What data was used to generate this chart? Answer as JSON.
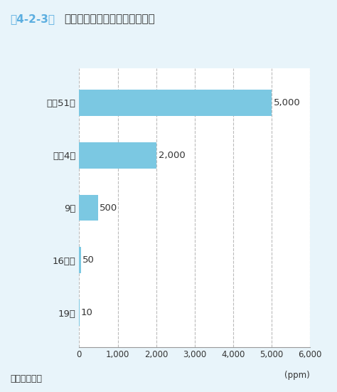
{
  "title_prefix": "図4-2-3",
  "title_text": "軽油中の硫黄分規制強化の推移",
  "categories": [
    "昭和51年",
    "平成4年",
    "9年",
    "16年末",
    "19年"
  ],
  "values": [
    5000,
    2000,
    500,
    50,
    10
  ],
  "bar_color": "#7BC8E2",
  "bar_height": 0.5,
  "xlim": [
    0,
    6000
  ],
  "xticks": [
    0,
    1000,
    2000,
    3000,
    4000,
    5000,
    6000
  ],
  "xtick_labels": [
    "0",
    "1,000",
    "2,000",
    "3,000",
    "4,000",
    "5,000",
    "6,000"
  ],
  "xlabel": "(ppm)",
  "value_labels": [
    "5,000",
    "2,000",
    "500",
    "50",
    "10"
  ],
  "value_offsets": [
    60,
    60,
    25,
    25,
    25
  ],
  "background_color": "#E8F4FA",
  "plot_bg_color": "#FFFFFF",
  "grid_color": "#BBBBBB",
  "source_text": "資料：環境省",
  "title_color": "#333333",
  "title_prefix_color": "#5BAEE0",
  "category_fontsize": 9.5,
  "value_fontsize": 9.5,
  "tick_fontsize": 8.5,
  "source_fontsize": 9,
  "title_fontsize": 11
}
